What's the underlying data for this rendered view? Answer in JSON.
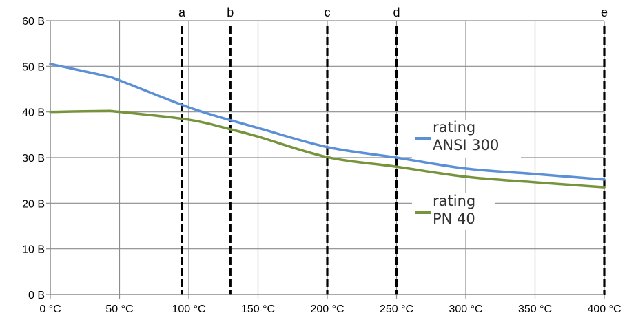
{
  "chart_data": {
    "type": "line",
    "title": "",
    "xlabel": "",
    "ylabel": "",
    "xlim": [
      0,
      400
    ],
    "ylim": [
      0,
      60
    ],
    "grid": true,
    "legend_position": "inline-right",
    "x_ticks": [
      0,
      50,
      100,
      150,
      200,
      250,
      300,
      350,
      400
    ],
    "x_tick_labels": [
      "0 °C",
      "50 °C",
      "100 °C",
      "150 °C",
      "200 °C",
      "250 °C",
      "300 °C",
      "350 °C",
      "400 °C"
    ],
    "y_ticks": [
      0,
      10,
      20,
      30,
      40,
      50,
      60
    ],
    "y_tick_labels": [
      "0 B",
      "10 B",
      "20 B",
      "30 B",
      "40 B",
      "50 B",
      "60 B"
    ],
    "x": [
      0,
      38,
      50,
      100,
      130,
      150,
      200,
      250,
      300,
      350,
      400
    ],
    "series": [
      {
        "name": "rating ANSI 300",
        "legend_lines": [
          "rating",
          "ANSI 300"
        ],
        "color": "#5b8fd6",
        "values": [
          50.5,
          48.0,
          46.9,
          41.0,
          38.2,
          36.5,
          32.3,
          30.0,
          27.6,
          26.4,
          25.2
        ]
      },
      {
        "name": "rating PN 40",
        "legend_lines": [
          "rating",
          "PN 40"
        ],
        "color": "#77933c",
        "values": [
          40.0,
          40.2,
          40.0,
          38.3,
          36.2,
          34.6,
          30.1,
          28.0,
          25.8,
          24.6,
          23.5
        ]
      }
    ],
    "reference_lines": [
      {
        "label": "a",
        "x": 95
      },
      {
        "label": "b",
        "x": 130
      },
      {
        "label": "c",
        "x": 200
      },
      {
        "label": "d",
        "x": 250
      },
      {
        "label": "e",
        "x": 400
      }
    ]
  }
}
